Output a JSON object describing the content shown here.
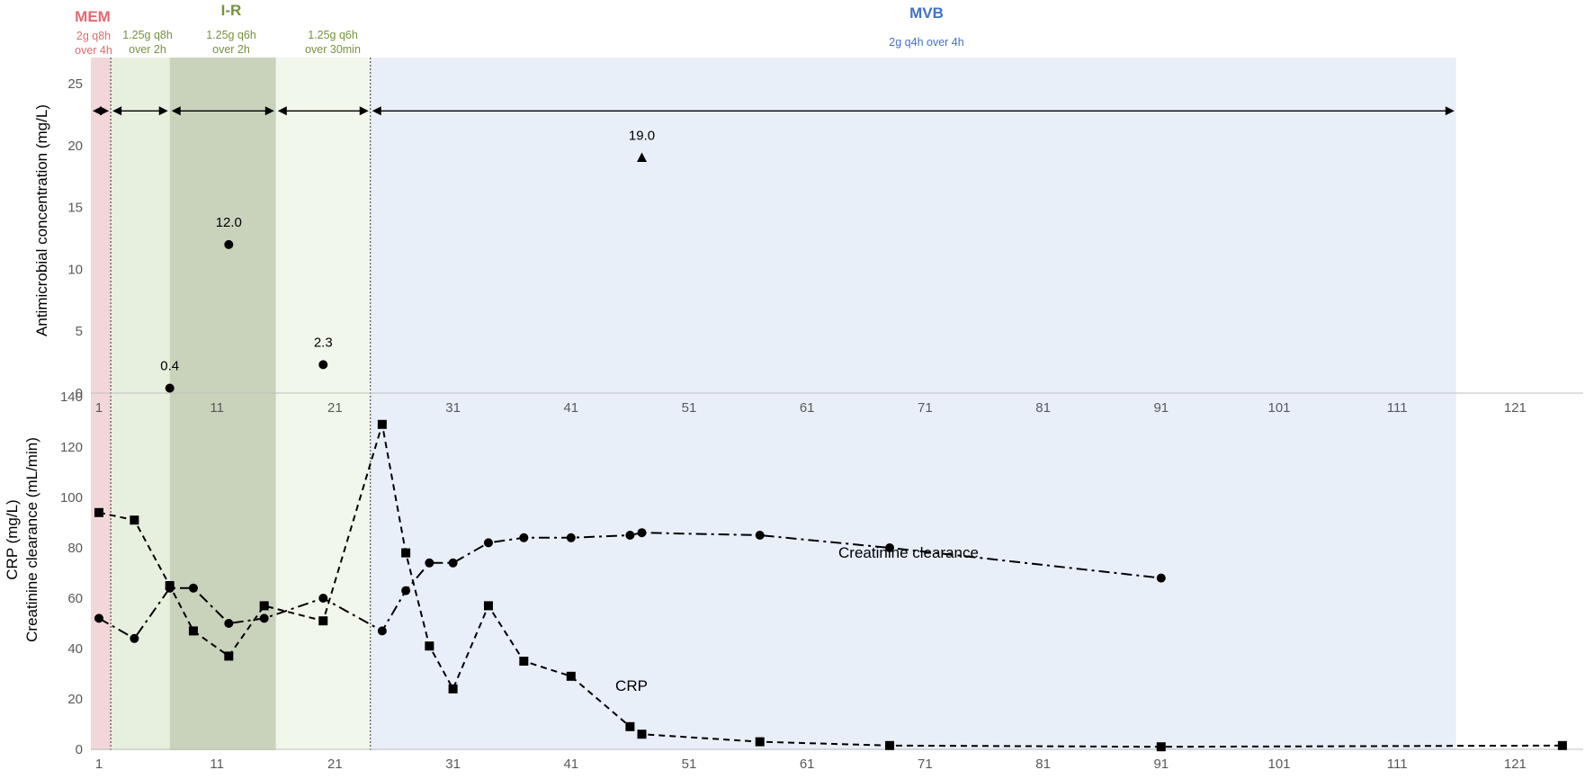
{
  "colors": {
    "mem": "#f2d7d9",
    "ir_band1": "#e7efdf",
    "ir_band2": "#c9d3bc",
    "ir_band3": "#f2f7ec",
    "mvb": "#e9eff9",
    "mem_text": "#e06b72",
    "ir_text": "#76923c",
    "mvb_text": "#4472c4"
  },
  "headers": {
    "mem": {
      "label": "MEM",
      "dose_line1": "2g q8h",
      "dose_line2": "over 4h"
    },
    "ir": {
      "label": "I-R",
      "band1_line1": "1.25g q8h",
      "band1_line2": "over 2h",
      "band2_line1": "1.25g q6h",
      "band2_line2": "over 2h",
      "band3_line1": "1.25g q6h",
      "band3_line2": "over 30min"
    },
    "mvb": {
      "label": "MVB",
      "dose": "2g q4h over 4h"
    }
  },
  "chart_data": [
    {
      "type": "scatter",
      "ylabel": "Antimicrobial concentration (mg/L)",
      "xlim": [
        0,
        125
      ],
      "ylim": [
        0,
        25
      ],
      "x_ticks": [
        1,
        11,
        21,
        31,
        41,
        51,
        61,
        71,
        81,
        91,
        101,
        111,
        121
      ],
      "y_ticks": [
        0,
        5,
        10,
        15,
        20,
        25
      ],
      "treatment_periods": [
        {
          "drug": "MEM",
          "start": 0,
          "end": 2
        },
        {
          "drug": "I-R",
          "regimen": "1.25g q8h over 2h",
          "start": 2,
          "end": 7
        },
        {
          "drug": "I-R",
          "regimen": "1.25g q6h over 2h",
          "start": 7,
          "end": 16
        },
        {
          "drug": "I-R",
          "regimen": "1.25g q6h over 30min",
          "start": 16,
          "end": 24
        },
        {
          "drug": "MVB",
          "start": 24,
          "end": 116
        }
      ],
      "series": [
        {
          "marker": "circle",
          "points": [
            {
              "x": 7,
              "y": 0.4,
              "label": "0.4"
            },
            {
              "x": 12,
              "y": 12.0,
              "label": "12.0"
            },
            {
              "x": 20,
              "y": 2.3,
              "label": "2.3"
            }
          ]
        },
        {
          "marker": "triangle",
          "points": [
            {
              "x": 47,
              "y": 19.0,
              "label": "19.0"
            }
          ]
        }
      ]
    },
    {
      "type": "line",
      "ylabel_line1": "CRP (mg/L)",
      "ylabel_line2": "Creatinine clearance (mL/min)",
      "xlim": [
        0,
        125
      ],
      "ylim": [
        0,
        140
      ],
      "x_ticks": [
        1,
        11,
        21,
        31,
        41,
        51,
        61,
        71,
        81,
        91,
        101,
        111,
        121
      ],
      "y_ticks": [
        0,
        20,
        40,
        60,
        80,
        100,
        120,
        140
      ],
      "series": [
        {
          "name": "Creatinine clearance",
          "marker": "circle",
          "line_style": "dash-dot",
          "x": [
            1,
            4,
            7,
            9,
            12,
            15,
            20,
            25,
            27,
            29,
            31,
            34,
            37,
            41,
            46,
            47,
            57,
            68,
            91
          ],
          "y": [
            52,
            44,
            64,
            64,
            50,
            52,
            60,
            47,
            63,
            74,
            74,
            82,
            84,
            84,
            85,
            86,
            85,
            80,
            68
          ]
        },
        {
          "name": "CRP",
          "marker": "square",
          "line_style": "dashed",
          "x": [
            1,
            4,
            7,
            9,
            12,
            15,
            20,
            25,
            27,
            29,
            31,
            34,
            37,
            41,
            46,
            47,
            57,
            68,
            91,
            125
          ],
          "y": [
            94,
            91,
            65,
            47,
            37,
            57,
            51,
            129,
            78,
            41,
            24,
            57,
            35,
            29,
            9,
            6,
            3,
            1.5,
            1,
            1.5
          ]
        }
      ]
    }
  ]
}
